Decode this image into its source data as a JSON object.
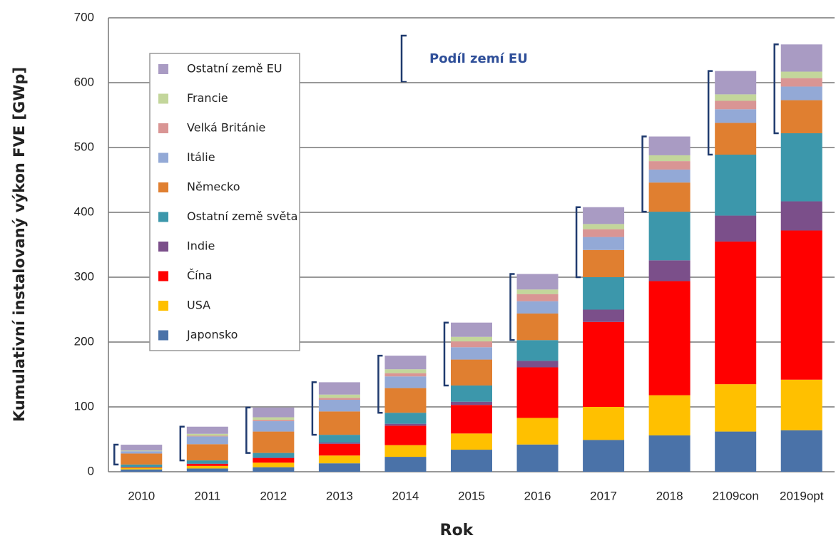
{
  "chart_data": {
    "type": "stacked_bar",
    "xlabel": "Rok",
    "ylabel": "Kumulativní instalovaný výkon FVE [GWp]",
    "annotation": "Podíl zemí EU",
    "categories": [
      "2010",
      "2011",
      "2012",
      "2013",
      "2014",
      "2015",
      "2016",
      "2017",
      "2018",
      "2109con",
      "2019opt"
    ],
    "series": [
      {
        "name": "Japonsko",
        "color": "#4a72a8",
        "values": [
          3.6,
          5,
          7,
          13,
          23,
          34,
          42,
          49,
          56,
          62,
          64
        ]
      },
      {
        "name": "USA",
        "color": "#ffc000",
        "values": [
          2.5,
          4,
          7,
          12,
          18,
          25,
          41,
          51,
          62,
          73,
          78
        ]
      },
      {
        "name": "Čína",
        "color": "#ff0000",
        "values": [
          0.8,
          3,
          7,
          18,
          30,
          44,
          78,
          131,
          176,
          220,
          230
        ]
      },
      {
        "name": "Indie",
        "color": "#7b4f8a",
        "values": [
          0.2,
          0.5,
          1,
          2,
          3,
          5,
          10,
          19,
          32,
          40,
          45
        ]
      },
      {
        "name": "Ostatní země světa",
        "color": "#3c97ab",
        "values": [
          4,
          5,
          7,
          12,
          17,
          25,
          32,
          50,
          75,
          94,
          105
        ]
      },
      {
        "name": "Německo",
        "color": "#e07f30",
        "values": [
          17,
          25,
          33,
          36,
          38,
          40,
          41,
          42,
          45,
          49,
          51
        ]
      },
      {
        "name": "Itálie",
        "color": "#93a9d6",
        "values": [
          3.5,
          12,
          16,
          18,
          18,
          19,
          19,
          20,
          20,
          21,
          21
        ]
      },
      {
        "name": "Velká Británie",
        "color": "#d99594",
        "values": [
          0.1,
          1,
          2,
          3,
          5,
          9,
          11,
          12,
          13,
          13,
          13
        ]
      },
      {
        "name": "Francie",
        "color": "#c3d69b",
        "values": [
          1,
          3,
          4,
          5,
          6,
          7,
          7,
          8,
          9,
          10,
          10
        ]
      },
      {
        "name": "Ostatní země EU",
        "color": "#a99bc3",
        "values": [
          9,
          11,
          15,
          19,
          21,
          22,
          24,
          26,
          29,
          36,
          42
        ]
      }
    ],
    "ylim": [
      0,
      700
    ],
    "yticks": [
      0,
      100,
      200,
      300,
      400,
      500,
      600,
      700
    ],
    "grid": true
  }
}
